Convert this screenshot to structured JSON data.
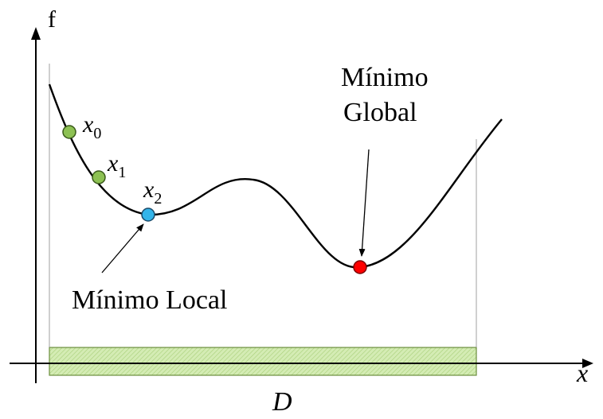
{
  "axes": {
    "y_label": "f",
    "x_label": "x"
  },
  "domain": {
    "label": "D",
    "fill_color": "#c9e6a6",
    "border_color": "#6b8e3d"
  },
  "points": [
    {
      "base": "x",
      "subscript": "0",
      "color": "#8dc153"
    },
    {
      "base": "x",
      "subscript": "1",
      "color": "#8dc153"
    },
    {
      "base": "x",
      "subscript": "2",
      "color": "#33b5ea"
    }
  ],
  "annotations": {
    "local_min": "Mínimo Local",
    "global_min_line1": "Mínimo",
    "global_min_line2": "Global",
    "global_point_color": "#ff0000"
  }
}
